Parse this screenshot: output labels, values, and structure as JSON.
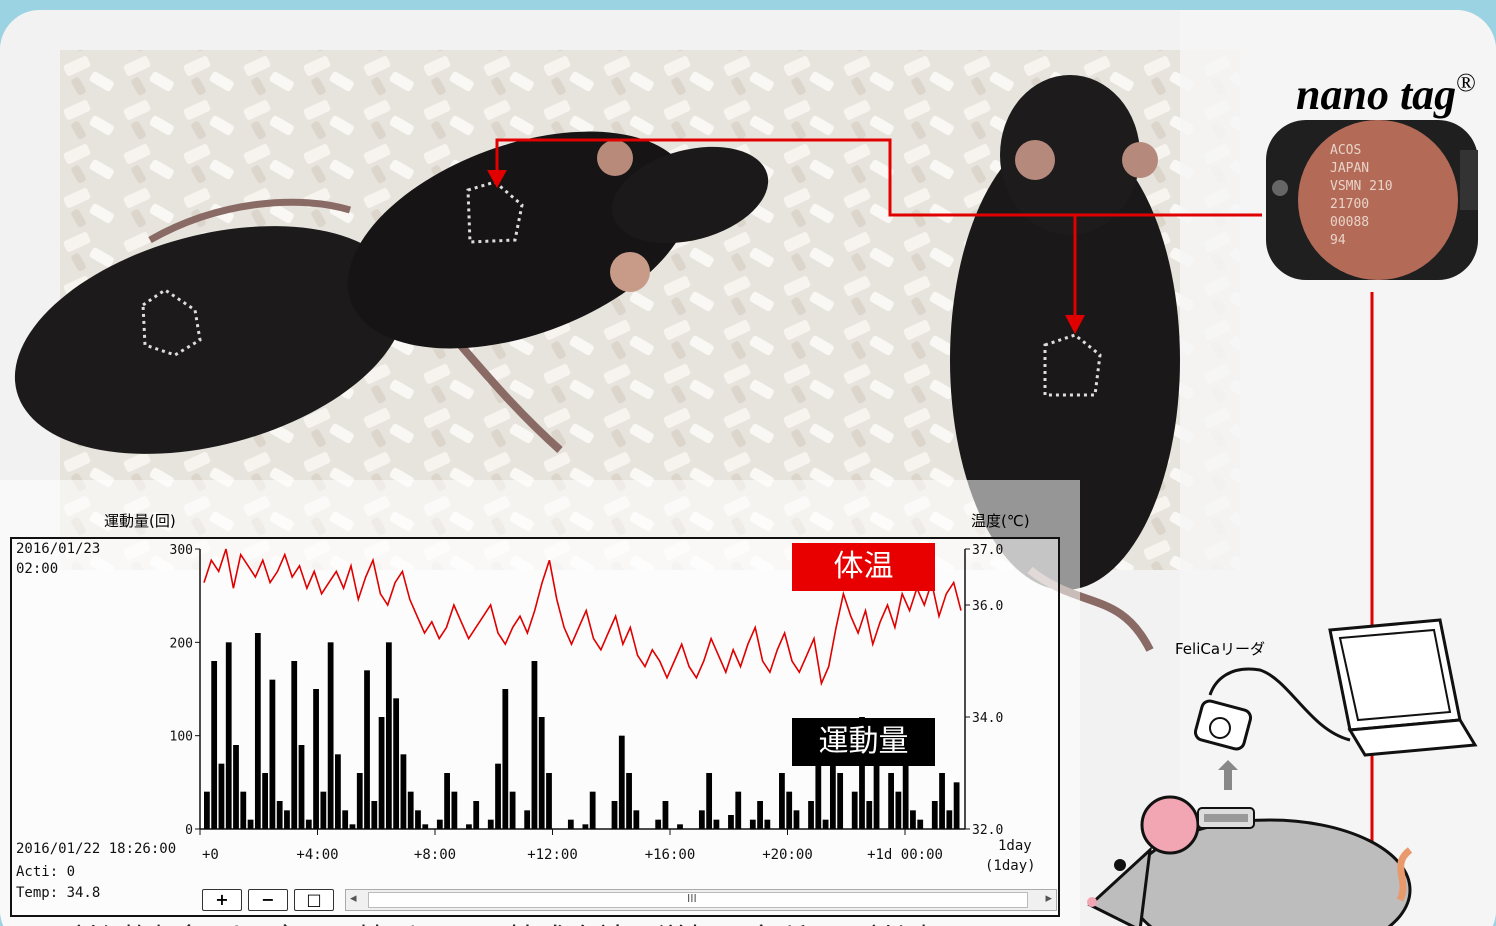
{
  "brand": {
    "name": "nano tag",
    "mark": "®"
  },
  "tag_text": [
    "ACOS",
    "JAPAN",
    "VSMN 210",
    "21700",
    "00088",
    "94"
  ],
  "device_label": "FeliCaリーダ",
  "caption": "計測例（マウス）：日精バイリス株式会社　滋賀研究所にて計測",
  "window": {
    "header_date": "2016/01/23",
    "header_time": "02:00",
    "cursor_datetime": "2016/01/22 18:26:00",
    "acti_label": "Acti: 0",
    "temp_label": "Temp: 34.8",
    "span_label": "1day",
    "span_label2": "(1day)",
    "buttons": {
      "zoom_in": "+",
      "zoom_out": "−",
      "fit": "□"
    },
    "scroll_left": "◂",
    "scroll_right": "▸",
    "scroll_grip": "III"
  },
  "chart_data": {
    "type": "bar+line",
    "y_left_label": "運動量(回)",
    "y_right_label": "温度(℃)",
    "y_left_ticks": [
      "300",
      "200",
      "100",
      "0"
    ],
    "y_left_lim": [
      0,
      300
    ],
    "y_right_ticks": [
      "37.0",
      "36.0",
      "34.0",
      "32.0"
    ],
    "y_right_values": [
      37.0,
      36.0,
      34.0,
      32.0
    ],
    "x_ticks": [
      "+0",
      "+4:00",
      "+8:00",
      "+12:00",
      "+16:00",
      "+20:00",
      "+1d 00:00"
    ],
    "series": [
      {
        "name": "体温",
        "color": "#e00000"
      },
      {
        "name": "運動量",
        "color": "#000000"
      }
    ],
    "temp_values": [
      36.4,
      36.8,
      36.6,
      37.0,
      36.3,
      36.9,
      36.7,
      36.5,
      36.8,
      36.4,
      36.6,
      36.9,
      36.5,
      36.7,
      36.3,
      36.6,
      36.2,
      36.4,
      36.6,
      36.3,
      36.7,
      36.1,
      36.5,
      36.8,
      36.2,
      36.0,
      36.4,
      36.6,
      36.1,
      35.8,
      35.5,
      35.7,
      35.4,
      35.6,
      36.0,
      35.7,
      35.4,
      35.6,
      35.8,
      36.0,
      35.5,
      35.3,
      35.6,
      35.8,
      35.5,
      35.9,
      36.4,
      36.8,
      36.1,
      35.6,
      35.3,
      35.6,
      35.9,
      35.4,
      35.2,
      35.5,
      35.8,
      35.3,
      35.6,
      35.1,
      34.9,
      35.2,
      35.0,
      34.7,
      35.0,
      35.3,
      34.9,
      34.7,
      35.0,
      35.4,
      35.1,
      34.8,
      35.2,
      34.9,
      35.3,
      35.6,
      35.0,
      34.8,
      35.2,
      35.5,
      35.0,
      34.8,
      35.1,
      35.4,
      34.6,
      34.9,
      35.6,
      36.2,
      35.8,
      35.5,
      35.9,
      35.3,
      35.7,
      36.0,
      35.6,
      36.2,
      35.9,
      36.3,
      36.0,
      36.4,
      35.8,
      36.2,
      36.4,
      35.9
    ],
    "activity_values": [
      40,
      180,
      70,
      200,
      90,
      40,
      10,
      210,
      60,
      160,
      30,
      20,
      180,
      90,
      10,
      150,
      40,
      200,
      80,
      20,
      5,
      60,
      170,
      30,
      120,
      200,
      140,
      80,
      40,
      20,
      5,
      0,
      10,
      60,
      40,
      0,
      5,
      30,
      0,
      10,
      70,
      150,
      40,
      0,
      20,
      180,
      120,
      60,
      0,
      0,
      10,
      0,
      5,
      40,
      0,
      0,
      30,
      100,
      60,
      20,
      0,
      0,
      10,
      30,
      0,
      5,
      0,
      0,
      20,
      60,
      10,
      0,
      15,
      40,
      0,
      10,
      30,
      10,
      0,
      60,
      40,
      20,
      0,
      30,
      80,
      10,
      100,
      60,
      0,
      40,
      120,
      30,
      80,
      0,
      60,
      40,
      90,
      20,
      10,
      0,
      30,
      60,
      20,
      50
    ]
  }
}
